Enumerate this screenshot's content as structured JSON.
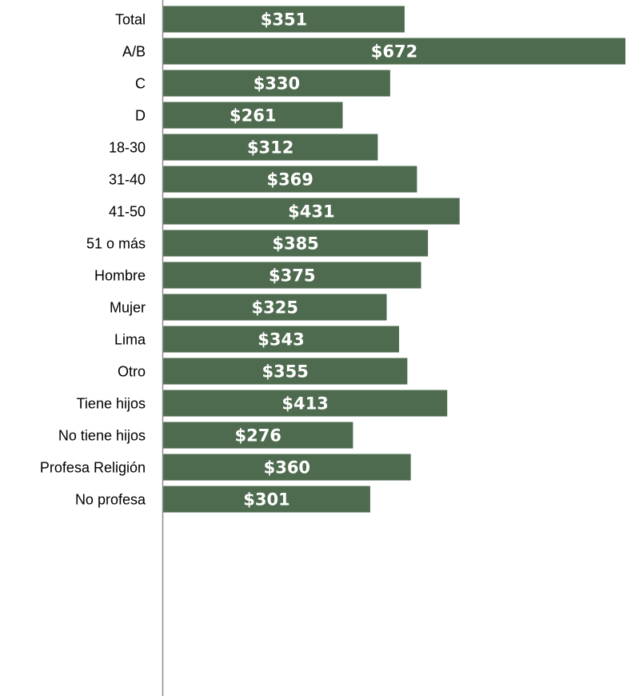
{
  "chart_data": {
    "type": "bar",
    "orientation": "horizontal",
    "title": "",
    "xlabel": "",
    "ylabel": "",
    "value_prefix": "$",
    "xlim": [
      0,
      672
    ],
    "grid": false,
    "legend": "none",
    "bar_color": "#4e6b4f",
    "axis_color": "#8c8c8c",
    "categories": [
      "Total",
      "A/B",
      "C",
      "D",
      "18-30",
      "31-40",
      "41-50",
      "51 o más",
      "Hombre",
      "Mujer",
      "Lima",
      "Otro",
      "Tiene hijos",
      "No tiene hijos",
      "Profesa Religión",
      "No profesa"
    ],
    "values": [
      351,
      672,
      330,
      261,
      312,
      369,
      431,
      385,
      375,
      325,
      343,
      355,
      413,
      276,
      360,
      301
    ],
    "data_labels": [
      "$351",
      "$672",
      "$330",
      "$261",
      "$312",
      "$369",
      "$431",
      "$385",
      "$375",
      "$325",
      "$343",
      "$355",
      "$413",
      "$276",
      "$360",
      "$301"
    ],
    "groups": [
      [
        "Total"
      ],
      [
        "A/B",
        "C",
        "D"
      ],
      [
        "18-30",
        "31-40",
        "41-50",
        "51 o más"
      ],
      [
        "Hombre",
        "Mujer"
      ],
      [
        "Lima",
        "Otro"
      ],
      [
        "Tiene hijos",
        "No tiene hijos"
      ],
      [
        "Profesa Religión",
        "No profesa"
      ]
    ]
  }
}
